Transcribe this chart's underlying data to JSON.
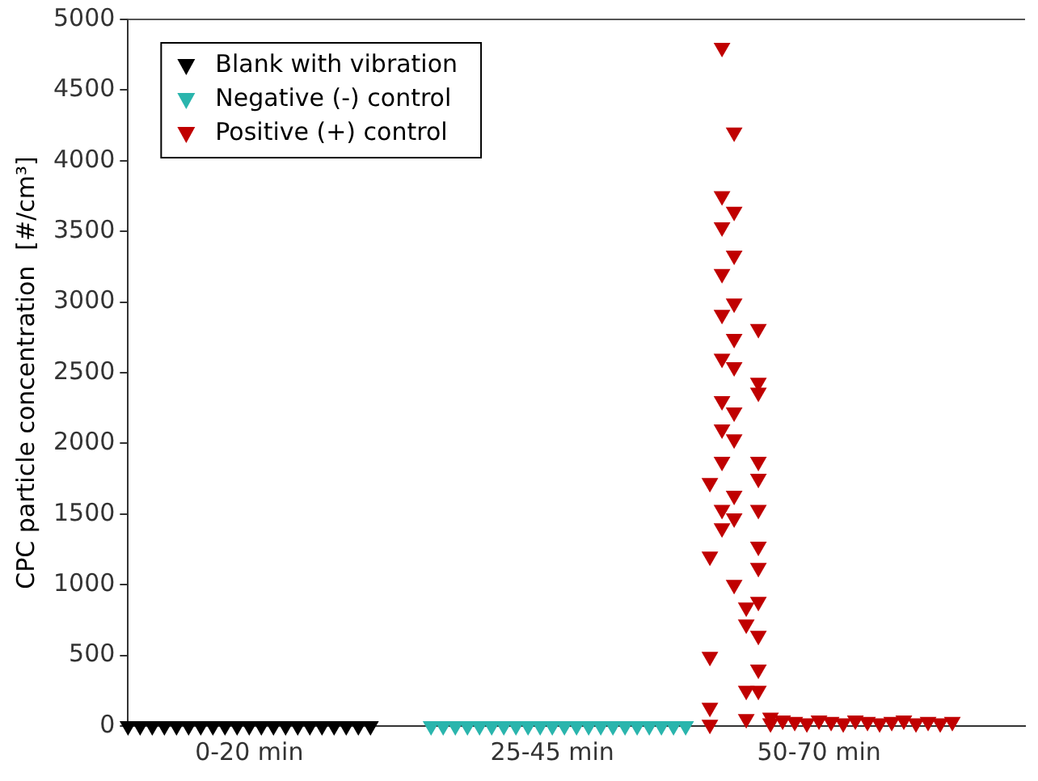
{
  "chart_data": {
    "type": "scatter",
    "ylabel": "CPC particle concentration  [#/cm³]",
    "categories": [
      null,
      null,
      null,
      null,
      null,
      null,
      null,
      null,
      null,
      null,
      "0-20 min",
      null,
      null,
      null,
      null,
      null,
      null,
      null,
      null,
      null,
      null,
      null,
      null,
      null,
      null,
      null,
      null,
      null,
      null,
      null,
      null,
      null,
      null,
      null,
      null,
      "25-45 min",
      null,
      null,
      null,
      null,
      null,
      null,
      null,
      null,
      null,
      null,
      null,
      null,
      null,
      null,
      null,
      null,
      null,
      null,
      null,
      null,
      null,
      "50-70 min",
      null,
      null,
      null,
      null,
      null,
      null,
      null,
      null,
      null,
      null,
      null,
      null,
      null,
      null,
      null,
      null,
      null
    ],
    "ylim": [
      0,
      5000
    ],
    "yticks": [
      0,
      500,
      1000,
      1500,
      2000,
      2500,
      3000,
      3500,
      4000,
      4500,
      5000
    ],
    "grid": false,
    "legend": "top left",
    "marker": "triangle",
    "series": [
      {
        "name": "Blank with vibration",
        "color": "#000000",
        "values": [
          0,
          0,
          0,
          0,
          0,
          0,
          0,
          0,
          0,
          0,
          0,
          0,
          0,
          0,
          0,
          0,
          0,
          0,
          0,
          0,
          0,
          null,
          null,
          null,
          null,
          null,
          null,
          null,
          null,
          null,
          null,
          null,
          null,
          null,
          null,
          null,
          null,
          null,
          null,
          null,
          null,
          null,
          null,
          null,
          null,
          null,
          null,
          null,
          null,
          null,
          null,
          null,
          null,
          null,
          null,
          null,
          null,
          null,
          null,
          null,
          null,
          null,
          null,
          null,
          null,
          null,
          null,
          null,
          null,
          null,
          null,
          null,
          null,
          null,
          null
        ]
      },
      {
        "name": "Negative (-) control",
        "color": "#2ab5ad",
        "values": [
          null,
          null,
          null,
          null,
          null,
          null,
          null,
          null,
          null,
          null,
          null,
          null,
          null,
          null,
          null,
          null,
          null,
          null,
          null,
          null,
          null,
          null,
          null,
          null,
          null,
          0,
          0,
          0,
          0,
          0,
          0,
          0,
          0,
          0,
          0,
          0,
          0,
          0,
          0,
          0,
          0,
          0,
          0,
          0,
          0,
          0,
          0,
          null,
          null,
          null,
          null,
          null,
          null,
          null,
          null,
          null,
          null,
          null,
          null,
          null,
          null,
          null,
          null,
          null,
          null,
          null,
          null,
          null,
          null,
          null,
          null,
          null,
          null,
          null,
          null
        ]
      },
      {
        "name": "Positive (+) control",
        "color": "#c00000",
        "values": [
          null,
          null,
          null,
          null,
          null,
          null,
          null,
          null,
          null,
          null,
          null,
          null,
          null,
          null,
          null,
          null,
          null,
          null,
          null,
          null,
          null,
          null,
          null,
          null,
          null,
          null,
          null,
          null,
          null,
          null,
          null,
          null,
          null,
          null,
          null,
          null,
          null,
          null,
          null,
          null,
          null,
          null,
          null,
          null,
          null,
          null,
          null,
          null,
          10,
          4800,
          4200,
          null,
          2810,
          60,
          40,
          30,
          20,
          40,
          30,
          20,
          40,
          30,
          20,
          30,
          40,
          20,
          30,
          20,
          30,
          null,
          null,
          null,
          null,
          null,
          null
        ]
      },
      {
        "color": "#c00000",
        "values": [
          null,
          null,
          null,
          null,
          null,
          null,
          null,
          null,
          null,
          null,
          null,
          null,
          null,
          null,
          null,
          null,
          null,
          null,
          null,
          null,
          null,
          null,
          null,
          null,
          null,
          null,
          null,
          null,
          null,
          null,
          null,
          null,
          null,
          null,
          null,
          null,
          null,
          null,
          null,
          null,
          null,
          null,
          null,
          null,
          null,
          null,
          null,
          null,
          130,
          3750,
          3640,
          null,
          2430,
          null,
          null,
          null,
          null,
          null,
          null,
          null,
          null,
          null,
          null,
          null,
          null,
          null,
          null,
          null,
          null,
          null,
          null,
          null,
          null,
          null,
          null
        ]
      },
      {
        "color": "#c00000",
        "values": [
          null,
          null,
          null,
          null,
          null,
          null,
          null,
          null,
          null,
          null,
          null,
          null,
          null,
          null,
          null,
          null,
          null,
          null,
          null,
          null,
          null,
          null,
          null,
          null,
          null,
          null,
          null,
          null,
          null,
          null,
          null,
          null,
          null,
          null,
          null,
          null,
          null,
          null,
          null,
          null,
          null,
          null,
          null,
          null,
          null,
          null,
          null,
          null,
          490,
          3530,
          3330,
          null,
          2360,
          20,
          null,
          null,
          null,
          null,
          null,
          null,
          null,
          null,
          null,
          null,
          null,
          null,
          null,
          null,
          null,
          null,
          null,
          null,
          null,
          null,
          null
        ]
      },
      {
        "color": "#c00000",
        "values": [
          null,
          null,
          null,
          null,
          null,
          null,
          null,
          null,
          null,
          null,
          null,
          null,
          null,
          null,
          null,
          null,
          null,
          null,
          null,
          null,
          null,
          null,
          null,
          null,
          null,
          null,
          null,
          null,
          null,
          null,
          null,
          null,
          null,
          null,
          null,
          null,
          null,
          null,
          null,
          null,
          null,
          null,
          null,
          null,
          null,
          null,
          null,
          null,
          1200,
          3200,
          2990,
          null,
          1870,
          null,
          null,
          null,
          null,
          null,
          null,
          null,
          null,
          null,
          null,
          null,
          null,
          null,
          null,
          null,
          null,
          null,
          null,
          null,
          null,
          null,
          null
        ]
      },
      {
        "color": "#c00000",
        "values": [
          null,
          null,
          null,
          null,
          null,
          null,
          null,
          null,
          null,
          null,
          null,
          null,
          null,
          null,
          null,
          null,
          null,
          null,
          null,
          null,
          null,
          null,
          null,
          null,
          null,
          null,
          null,
          null,
          null,
          null,
          null,
          null,
          null,
          null,
          null,
          null,
          null,
          null,
          null,
          null,
          null,
          null,
          null,
          null,
          null,
          null,
          null,
          null,
          1720,
          2910,
          2740,
          null,
          1750,
          null,
          null,
          null,
          null,
          null,
          null,
          null,
          null,
          null,
          null,
          null,
          null,
          null,
          null,
          null,
          null,
          null,
          null,
          null,
          null,
          null,
          null
        ]
      },
      {
        "color": "#c00000",
        "values": [
          null,
          null,
          null,
          null,
          null,
          null,
          null,
          null,
          null,
          null,
          null,
          null,
          null,
          null,
          null,
          null,
          null,
          null,
          null,
          null,
          null,
          null,
          null,
          null,
          null,
          null,
          null,
          null,
          null,
          null,
          null,
          null,
          null,
          null,
          null,
          null,
          null,
          null,
          null,
          null,
          null,
          null,
          null,
          null,
          null,
          null,
          null,
          null,
          null,
          2600,
          2540,
          840,
          1530,
          null,
          null,
          null,
          null,
          null,
          null,
          null,
          null,
          null,
          null,
          null,
          null,
          null,
          null,
          null,
          null,
          null,
          null,
          null,
          null,
          null,
          null
        ]
      },
      {
        "color": "#c00000",
        "values": [
          null,
          null,
          null,
          null,
          null,
          null,
          null,
          null,
          null,
          null,
          null,
          null,
          null,
          null,
          null,
          null,
          null,
          null,
          null,
          null,
          null,
          null,
          null,
          null,
          null,
          null,
          null,
          null,
          null,
          null,
          null,
          null,
          null,
          null,
          null,
          null,
          null,
          null,
          null,
          null,
          null,
          null,
          null,
          null,
          null,
          null,
          null,
          null,
          null,
          2300,
          2220,
          720,
          1270,
          null,
          null,
          null,
          null,
          null,
          null,
          null,
          null,
          null,
          null,
          null,
          null,
          null,
          null,
          null,
          null,
          null,
          null,
          null,
          null,
          null,
          null
        ]
      },
      {
        "color": "#c00000",
        "values": [
          null,
          null,
          null,
          null,
          null,
          null,
          null,
          null,
          null,
          null,
          null,
          null,
          null,
          null,
          null,
          null,
          null,
          null,
          null,
          null,
          null,
          null,
          null,
          null,
          null,
          null,
          null,
          null,
          null,
          null,
          null,
          null,
          null,
          null,
          null,
          null,
          null,
          null,
          null,
          null,
          null,
          null,
          null,
          null,
          null,
          null,
          null,
          null,
          null,
          2100,
          2030,
          250,
          1120,
          null,
          null,
          null,
          null,
          null,
          null,
          null,
          null,
          null,
          null,
          null,
          null,
          null,
          null,
          null,
          null,
          null,
          null,
          null,
          null,
          null,
          null
        ]
      },
      {
        "color": "#c00000",
        "values": [
          null,
          null,
          null,
          null,
          null,
          null,
          null,
          null,
          null,
          null,
          null,
          null,
          null,
          null,
          null,
          null,
          null,
          null,
          null,
          null,
          null,
          null,
          null,
          null,
          null,
          null,
          null,
          null,
          null,
          null,
          null,
          null,
          null,
          null,
          null,
          null,
          null,
          null,
          null,
          null,
          null,
          null,
          null,
          null,
          null,
          null,
          null,
          null,
          null,
          1870,
          1630,
          null,
          880,
          null,
          null,
          null,
          null,
          null,
          null,
          null,
          null,
          null,
          null,
          null,
          null,
          null,
          null,
          null,
          null,
          null,
          null,
          null,
          null,
          null,
          null
        ]
      },
      {
        "color": "#c00000",
        "values": [
          null,
          null,
          null,
          null,
          null,
          null,
          null,
          null,
          null,
          null,
          null,
          null,
          null,
          null,
          null,
          null,
          null,
          null,
          null,
          null,
          null,
          null,
          null,
          null,
          null,
          null,
          null,
          null,
          null,
          null,
          null,
          null,
          null,
          null,
          null,
          null,
          null,
          null,
          null,
          null,
          null,
          null,
          null,
          null,
          null,
          null,
          null,
          null,
          null,
          1530,
          1470,
          null,
          640,
          null,
          null,
          null,
          null,
          null,
          null,
          null,
          null,
          null,
          null,
          null,
          null,
          null,
          null,
          null,
          null,
          null,
          null,
          null,
          null,
          null,
          null
        ]
      },
      {
        "color": "#c00000",
        "values": [
          null,
          null,
          null,
          null,
          null,
          null,
          null,
          null,
          null,
          null,
          null,
          null,
          null,
          null,
          null,
          null,
          null,
          null,
          null,
          null,
          null,
          null,
          null,
          null,
          null,
          null,
          null,
          null,
          null,
          null,
          null,
          null,
          null,
          null,
          null,
          null,
          null,
          null,
          null,
          null,
          null,
          null,
          null,
          null,
          null,
          null,
          null,
          null,
          null,
          1400,
          1000,
          null,
          400,
          null,
          null,
          null,
          null,
          null,
          null,
          null,
          null,
          null,
          null,
          null,
          null,
          null,
          null,
          null,
          null,
          null,
          null,
          null,
          null,
          null,
          null
        ]
      },
      {
        "color": "#c00000",
        "values": [
          null,
          null,
          null,
          null,
          null,
          null,
          null,
          null,
          null,
          null,
          null,
          null,
          null,
          null,
          null,
          null,
          null,
          null,
          null,
          null,
          null,
          null,
          null,
          null,
          null,
          null,
          null,
          null,
          null,
          null,
          null,
          null,
          null,
          null,
          null,
          null,
          null,
          null,
          null,
          null,
          null,
          null,
          null,
          null,
          null,
          null,
          null,
          null,
          null,
          null,
          null,
          50,
          250,
          null,
          null,
          null,
          null,
          null,
          null,
          null,
          null,
          null,
          null,
          null,
          null,
          null,
          null,
          null,
          null,
          null,
          null,
          null,
          null,
          null,
          null
        ]
      }
    ]
  }
}
